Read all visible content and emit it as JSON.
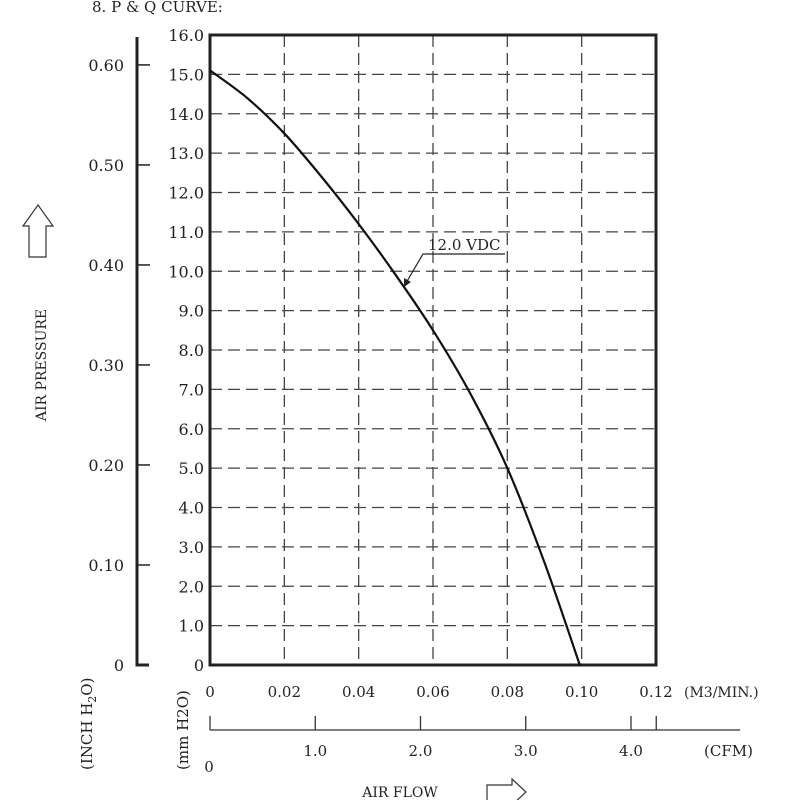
{
  "title": "8. P & Q CURVE:",
  "chart_data": {
    "type": "line",
    "title": "8. P & Q CURVE:",
    "xlabel": "AIR FLOW",
    "ylabel": "AIR PRESSURE",
    "x_unit": "(M3/MIN.)",
    "x_unit_base": "(M",
    "x_unit_sup": "3",
    "x_unit_tail": "/MIN.)",
    "x2_unit": "(CFM)",
    "y_unit_left": "(INCH H2O)",
    "y_unit_left_base": "(INCH H",
    "y_unit_left_sub": "2",
    "y_unit_left_tail": "O)",
    "y_unit": "(mm H2O)",
    "y_unit_base": "(mm H",
    "y_unit_sub": "2",
    "y_unit_tail": "O)",
    "xlim": [
      0,
      0.12
    ],
    "ylim": [
      0,
      16
    ],
    "x_ticks": [
      "0",
      "0.02",
      "0.04",
      "0.06",
      "0.08",
      "0.10",
      "0.12"
    ],
    "x_tick_values": [
      0,
      0.02,
      0.04,
      0.06,
      0.08,
      0.1,
      0.12
    ],
    "y_ticks": [
      "0",
      "1.0",
      "2.0",
      "3.0",
      "4.0",
      "5.0",
      "6.0",
      "7.0",
      "8.0",
      "9.0",
      "10.0",
      "11.0",
      "12.0",
      "13.0",
      "14.0",
      "15.0",
      "16.0"
    ],
    "y_tick_values": [
      0,
      1,
      2,
      3,
      4,
      5,
      6,
      7,
      8,
      9,
      10,
      11,
      12,
      13,
      14,
      15,
      16
    ],
    "y2_ticks": [
      "0",
      "0.10",
      "0.20",
      "0.30",
      "0.40",
      "0.50",
      "0.60"
    ],
    "y2_tick_values": [
      0,
      0.1,
      0.2,
      0.3,
      0.4,
      0.5,
      0.6
    ],
    "x2_zero": "0",
    "x2_ticks": [
      "1.0",
      "2.0",
      "3.0",
      "4.0"
    ],
    "x2_tick_values": [
      1,
      2,
      3,
      4
    ],
    "x2_max": 4.24,
    "grid": true,
    "series": [
      {
        "name": "12.0 VDC",
        "x": [
          0,
          0.01,
          0.02,
          0.03,
          0.04,
          0.05,
          0.06,
          0.07,
          0.08,
          0.09,
          0.0995
        ],
        "y": [
          15.1,
          14.4,
          13.5,
          12.4,
          11.2,
          9.9,
          8.5,
          6.9,
          5.0,
          2.6,
          0
        ]
      }
    ],
    "annotation": "12.0 VDC"
  }
}
